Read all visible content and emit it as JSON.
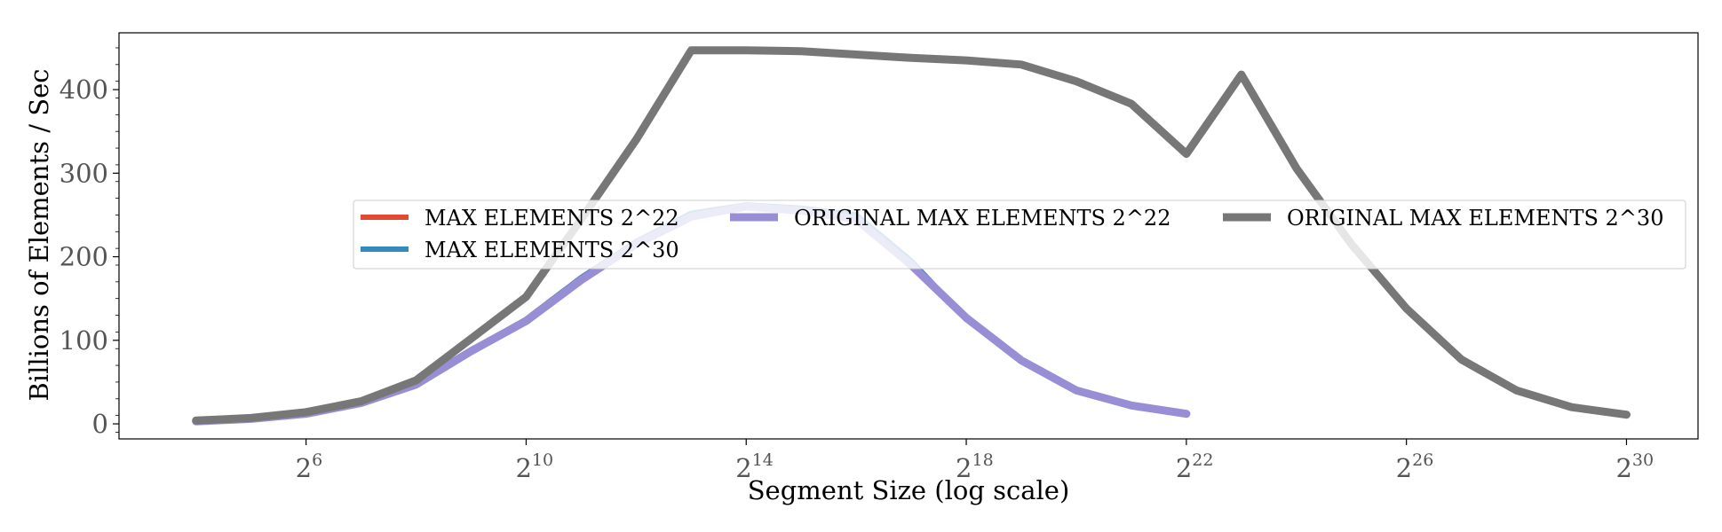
{
  "chart_data": {
    "type": "line",
    "xlabel": "Segment Size (log scale)",
    "ylabel": "Billions of Elements / Sec",
    "x_scale": "log2",
    "xlim_exponent": [
      2.6,
      31.3
    ],
    "ylim": [
      -18,
      468
    ],
    "x_ticks": [
      {
        "base": "2",
        "exp": "6",
        "exponent": 6
      },
      {
        "base": "2",
        "exp": "10",
        "exponent": 10
      },
      {
        "base": "2",
        "exp": "14",
        "exponent": 14
      },
      {
        "base": "2",
        "exp": "18",
        "exponent": 18
      },
      {
        "base": "2",
        "exp": "22",
        "exponent": 22
      },
      {
        "base": "2",
        "exp": "26",
        "exponent": 26
      },
      {
        "base": "2",
        "exp": "30",
        "exponent": 30
      }
    ],
    "y_ticks": [
      0,
      100,
      200,
      300,
      400
    ],
    "grid": false,
    "legend": {
      "placement": "center-right",
      "columns": 3
    },
    "series": [
      {
        "name": "MAX ELEMENTS 2^22",
        "color": "#E24A33",
        "width": 6,
        "x_exponent": [
          4,
          5,
          6,
          7,
          8,
          9,
          10,
          11,
          12,
          13,
          14,
          15,
          16,
          17,
          18,
          19,
          20,
          21,
          22
        ],
        "values": [
          3,
          6,
          12,
          24,
          48,
          88,
          125,
          175,
          218,
          252,
          262,
          258,
          250,
          195,
          125,
          77,
          40,
          22,
          12
        ]
      },
      {
        "name": "MAX ELEMENTS 2^30",
        "color": "#348ABD",
        "width": 6,
        "x_exponent": [
          4,
          5,
          6,
          7,
          8,
          9,
          10,
          11,
          12,
          13,
          14,
          15,
          16,
          17,
          18,
          19,
          20,
          21,
          22
        ],
        "values": [
          3,
          6,
          12,
          24,
          48,
          88,
          125,
          175,
          218,
          252,
          262,
          258,
          250,
          195,
          125,
          77,
          40,
          22,
          12
        ]
      },
      {
        "name": "ORIGINAL MAX ELEMENTS 2^22",
        "color": "#988ED5",
        "width": 9,
        "x_exponent": [
          4,
          5,
          6,
          7,
          8,
          9,
          10,
          11,
          12,
          13,
          14,
          15,
          16,
          17,
          18,
          19,
          20,
          21,
          22
        ],
        "values": [
          3,
          6,
          12,
          25,
          47,
          87,
          123,
          172,
          215,
          248,
          260,
          255,
          245,
          190,
          127,
          76,
          40,
          22,
          12
        ]
      },
      {
        "name": "ORIGINAL MAX ELEMENTS 2^30",
        "color": "#777777",
        "width": 9,
        "x_exponent": [
          4,
          5,
          6,
          7,
          8,
          9,
          10,
          11,
          12,
          13,
          14,
          15,
          16,
          17,
          18,
          19,
          20,
          21,
          22,
          23,
          24,
          25,
          26,
          27,
          28,
          29,
          30
        ],
        "values": [
          4,
          7,
          14,
          27,
          52,
          102,
          152,
          245,
          340,
          447,
          447,
          446,
          442,
          438,
          435,
          430,
          410,
          383,
          323,
          418,
          306,
          215,
          138,
          77,
          40,
          20,
          11
        ]
      }
    ]
  }
}
